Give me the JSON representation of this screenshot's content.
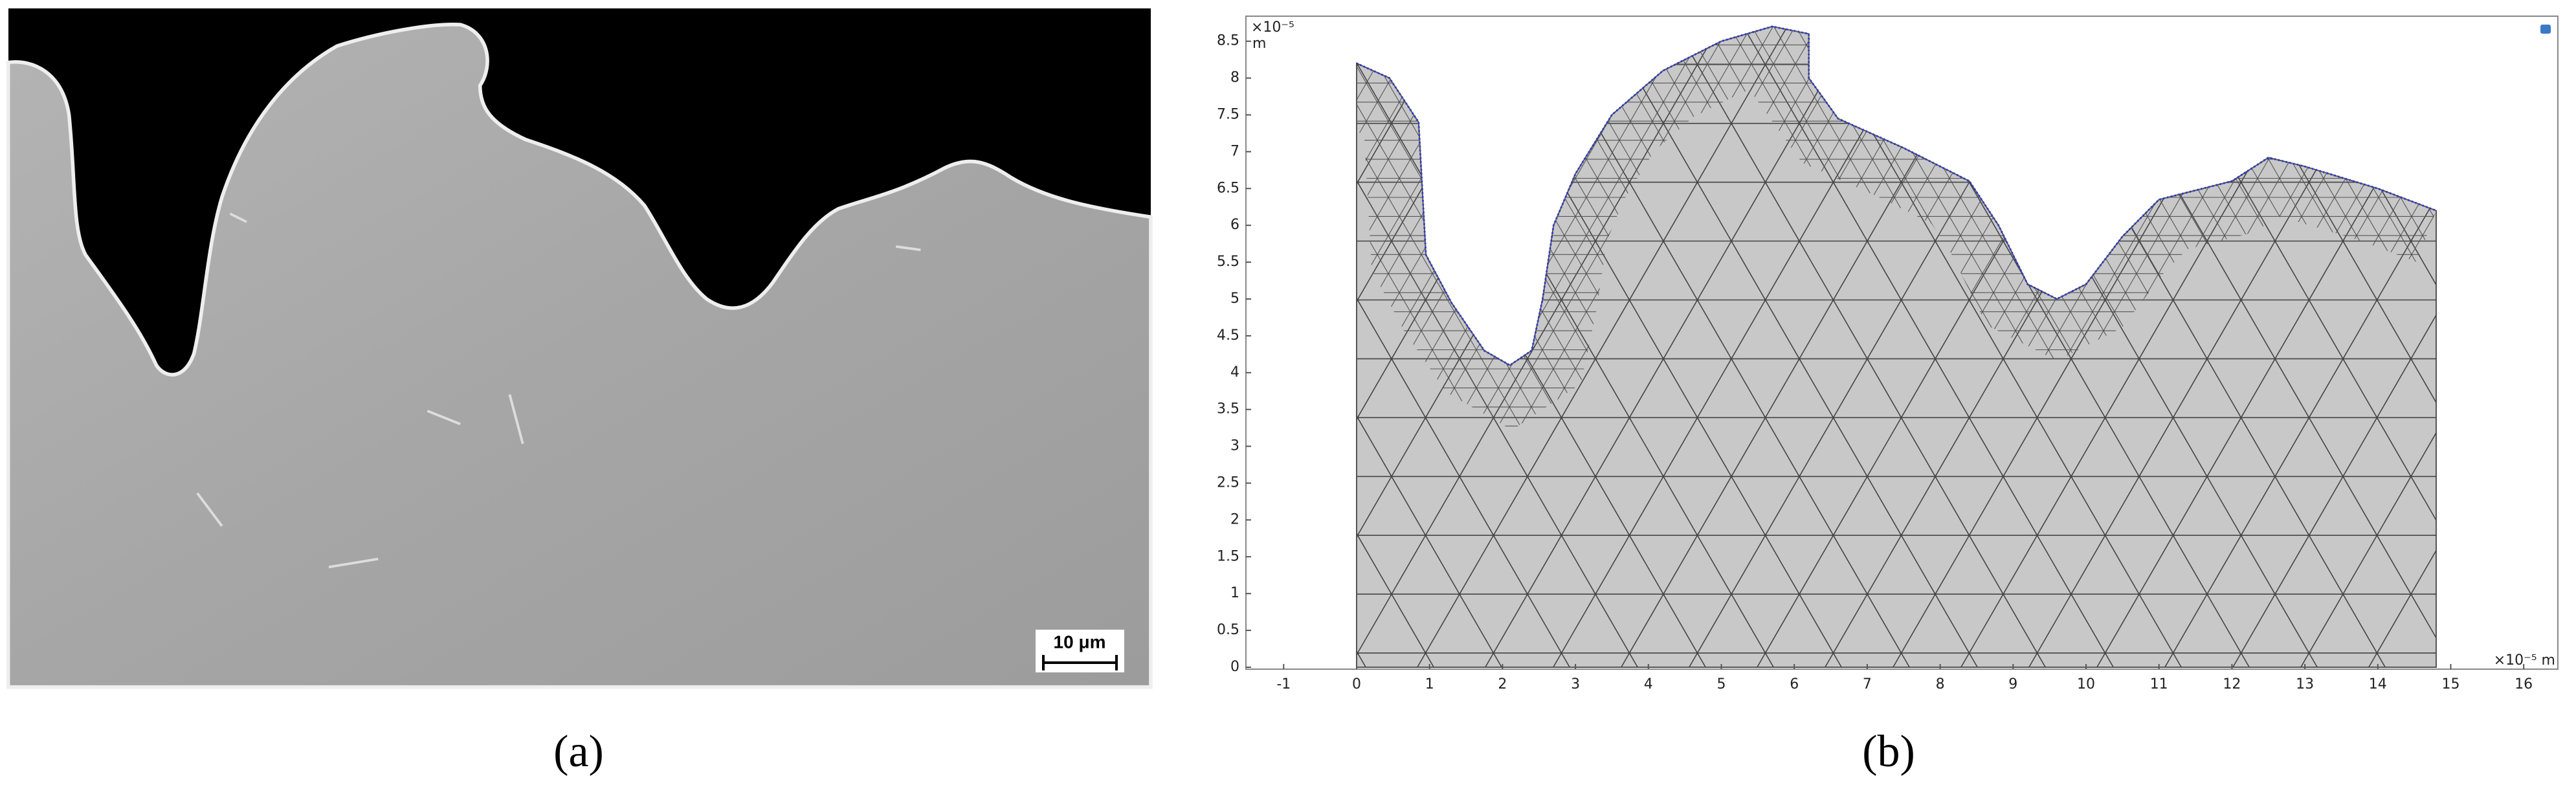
{
  "panel_a": {
    "label": "(a)",
    "scale_bar": "10 μm"
  },
  "panel_b": {
    "label": "(b)",
    "x_axis": {
      "unit": "×10⁻⁵ m",
      "ticks": [
        -1,
        0,
        1,
        2,
        3,
        4,
        5,
        6,
        7,
        8,
        9,
        10,
        11,
        12,
        13,
        14,
        15,
        16
      ]
    },
    "y_axis": {
      "exponent": "×10⁻⁵",
      "unit": "m",
      "ticks": [
        0,
        0.5,
        1,
        1.5,
        2,
        2.5,
        3,
        3.5,
        4,
        4.5,
        5,
        5.5,
        6,
        6.5,
        7,
        7.5,
        8,
        8.5
      ]
    }
  }
}
